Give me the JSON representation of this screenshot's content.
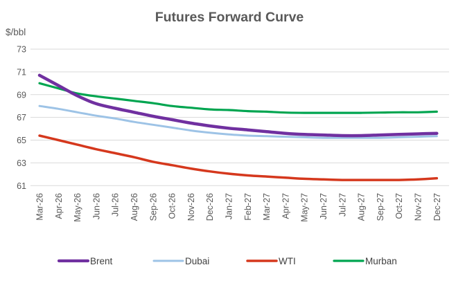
{
  "chart_data": {
    "type": "line",
    "title": "Futures Forward Curve",
    "ylabel": "$/bbl",
    "ylim": [
      61,
      73
    ],
    "yticks": [
      61,
      63,
      65,
      67,
      69,
      71,
      73
    ],
    "grid": true,
    "legend_position": "bottom",
    "categories": [
      "Mar-26",
      "Apr-26",
      "May-26",
      "Jun-26",
      "Jul-26",
      "Aug-26",
      "Sep-26",
      "Oct-26",
      "Nov-26",
      "Dec-26",
      "Jan-27",
      "Feb-27",
      "Mar-27",
      "Apr-27",
      "May-27",
      "Jun-27",
      "Jul-27",
      "Aug-27",
      "Sep-27",
      "Oct-27",
      "Nov-27",
      "Dec-27"
    ],
    "series": [
      {
        "name": "Brent",
        "color": "#7030A0",
        "line_width": 4.5,
        "values": [
          70.7,
          69.8,
          68.9,
          68.2,
          67.8,
          67.45,
          67.1,
          66.8,
          66.5,
          66.25,
          66.05,
          65.9,
          65.75,
          65.6,
          65.5,
          65.45,
          65.4,
          65.4,
          65.45,
          65.5,
          65.55,
          65.6
        ]
      },
      {
        "name": "Dubai",
        "color": "#9DC3E6",
        "line_width": 3,
        "values": [
          68.0,
          67.75,
          67.45,
          67.15,
          66.9,
          66.6,
          66.35,
          66.1,
          65.85,
          65.65,
          65.5,
          65.4,
          65.35,
          65.3,
          65.25,
          65.2,
          65.2,
          65.2,
          65.2,
          65.25,
          65.3,
          65.35
        ]
      },
      {
        "name": "WTI",
        "color": "#D5381D",
        "line_width": 3.5,
        "values": [
          65.4,
          65.0,
          64.6,
          64.2,
          63.85,
          63.5,
          63.1,
          62.8,
          62.5,
          62.25,
          62.05,
          61.9,
          61.8,
          61.7,
          61.6,
          61.55,
          61.5,
          61.5,
          61.5,
          61.5,
          61.55,
          61.65
        ]
      },
      {
        "name": "Murban",
        "color": "#00A550",
        "line_width": 3.2,
        "values": [
          70.0,
          69.55,
          69.1,
          68.85,
          68.65,
          68.45,
          68.25,
          68.0,
          67.85,
          67.7,
          67.65,
          67.55,
          67.5,
          67.42,
          67.4,
          67.4,
          67.4,
          67.4,
          67.42,
          67.45,
          67.45,
          67.5
        ]
      }
    ]
  },
  "style": {
    "title_color": "#595959",
    "tick_color": "#595959",
    "legend_text_color": "#404040",
    "gridline_color": "#D9D9D9",
    "background": "#FFFFFF"
  }
}
